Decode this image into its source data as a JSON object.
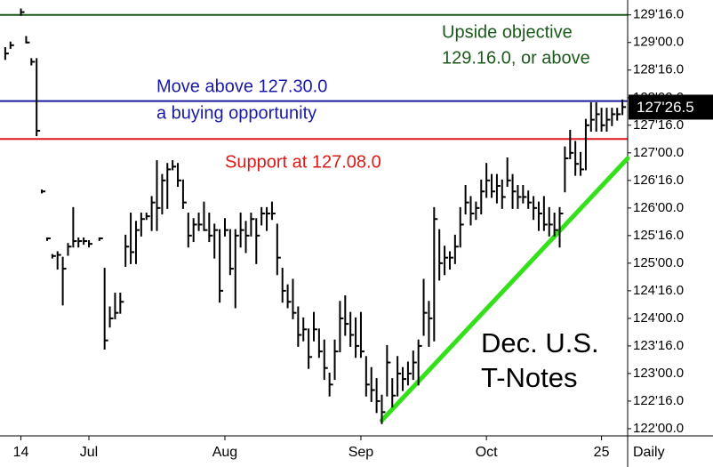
{
  "chart_data": {
    "type": "ohlc",
    "title": [
      "Dec. U.S.",
      "T-Notes"
    ],
    "period": "Daily",
    "bar_color": "#000000",
    "x": [
      1,
      2,
      4,
      5,
      6,
      7,
      8,
      9,
      10,
      11,
      12,
      13,
      14,
      15,
      16,
      17,
      19,
      20,
      21,
      22,
      23,
      24,
      25,
      26,
      27,
      28,
      29,
      30,
      31,
      32,
      33,
      34,
      35,
      36,
      37,
      38,
      39,
      40,
      41,
      42,
      43,
      44,
      45,
      46,
      47,
      48,
      49,
      50,
      51,
      52,
      53,
      54,
      55,
      56,
      57,
      58,
      59,
      60,
      61,
      62,
      63,
      64,
      65,
      66,
      67,
      68,
      69,
      70,
      71,
      72,
      73,
      74,
      75,
      76,
      77,
      78,
      79,
      80,
      81,
      82,
      83,
      84,
      85,
      86,
      87,
      88,
      89,
      90,
      91,
      92,
      93,
      94,
      95,
      96,
      97,
      98,
      99,
      100,
      101,
      102,
      103,
      104,
      105,
      106,
      107,
      108,
      109,
      110,
      111,
      112,
      113,
      114,
      115,
      116,
      117,
      118,
      119
    ],
    "high": [
      128.9,
      129.0,
      129.6,
      129.1,
      128.7,
      128.7,
      126.32,
      125.45,
      125.15,
      125.2,
      125.1,
      125.35,
      126.0,
      125.45,
      125.45,
      125.4,
      125.45,
      124.9,
      124.2,
      124.45,
      124.45,
      125.5,
      125.9,
      125.75,
      125.9,
      125.9,
      126.2,
      126.85,
      126.6,
      126.8,
      126.85,
      126.8,
      126.5,
      125.9,
      125.8,
      125.9,
      126.1,
      125.9,
      125.7,
      125.6,
      125.8,
      125.6,
      125.6,
      125.9,
      125.75,
      125.9,
      125.8,
      126.0,
      126.0,
      126.1,
      125.7,
      124.9,
      124.6,
      124.7,
      124.2,
      124.0,
      123.8,
      124.1,
      123.8,
      123.6,
      123.0,
      123.6,
      124.3,
      124.4,
      124.1,
      124.0,
      124.1,
      123.3,
      123.1,
      122.9,
      122.6,
      123.5,
      122.9,
      123.3,
      123.1,
      123.2,
      123.4,
      123.6,
      124.7,
      124.3,
      126.0,
      125.6,
      125.3,
      125.2,
      125.5,
      126.0,
      126.4,
      126.2,
      126.1,
      126.5,
      126.8,
      126.6,
      126.6,
      126.5,
      126.9,
      126.6,
      126.4,
      126.4,
      126.3,
      126.2,
      126.1,
      126.2,
      126.0,
      125.9,
      126.0,
      127.1,
      127.4,
      127.2,
      127.0,
      127.6,
      127.9,
      127.9,
      127.8,
      127.8,
      127.8,
      127.8,
      127.95
    ],
    "low": [
      128.7,
      128.9,
      129.5,
      129.0,
      128.6,
      127.32,
      126.28,
      125.42,
      125.1,
      124.9,
      124.25,
      125.15,
      125.3,
      125.3,
      125.35,
      125.3,
      125.42,
      123.45,
      123.85,
      124.0,
      124.1,
      124.95,
      125.0,
      125.0,
      125.5,
      125.8,
      125.6,
      125.6,
      125.9,
      126.0,
      126.7,
      126.4,
      126.0,
      125.3,
      125.4,
      125.6,
      125.6,
      125.4,
      125.1,
      124.3,
      125.5,
      124.8,
      124.2,
      125.3,
      125.2,
      125.5,
      125.0,
      125.7,
      125.6,
      125.8,
      124.8,
      124.3,
      124.2,
      124.0,
      123.5,
      123.6,
      123.1,
      123.6,
      123.3,
      122.9,
      122.6,
      122.9,
      123.4,
      123.7,
      123.5,
      123.3,
      123.3,
      122.6,
      122.5,
      122.3,
      122.1,
      122.6,
      122.4,
      122.6,
      122.7,
      122.8,
      122.9,
      122.8,
      123.7,
      123.5,
      123.6,
      124.7,
      124.8,
      124.9,
      125.0,
      125.3,
      125.9,
      125.7,
      125.8,
      125.9,
      126.2,
      126.2,
      126.1,
      126.0,
      126.4,
      126.0,
      126.0,
      126.1,
      126.0,
      125.8,
      125.6,
      125.6,
      125.5,
      125.5,
      125.3,
      126.3,
      126.9,
      126.6,
      126.6,
      126.7,
      127.4,
      127.4,
      127.4,
      127.4,
      127.5,
      127.6,
      127.7
    ],
    "close": [
      128.8,
      128.95,
      129.55,
      129.0,
      128.65,
      127.4,
      126.3,
      125.45,
      125.13,
      125.15,
      124.9,
      125.3,
      125.4,
      125.4,
      125.4,
      125.35,
      125.45,
      123.6,
      124.0,
      124.1,
      124.3,
      125.3,
      125.2,
      125.6,
      125.8,
      125.85,
      126.1,
      126.0,
      126.5,
      126.7,
      126.75,
      126.5,
      126.1,
      125.5,
      125.7,
      125.7,
      125.6,
      125.5,
      125.6,
      124.5,
      125.6,
      124.9,
      125.5,
      125.6,
      125.5,
      125.8,
      125.5,
      125.9,
      125.9,
      125.9,
      125.1,
      124.5,
      124.3,
      124.1,
      123.7,
      123.8,
      123.3,
      123.8,
      123.4,
      123.1,
      122.8,
      123.4,
      124.0,
      123.9,
      123.7,
      123.5,
      123.4,
      122.8,
      122.7,
      122.5,
      122.3,
      123.2,
      122.6,
      123.0,
      122.9,
      123.0,
      123.2,
      123.5,
      124.1,
      124.0,
      125.8,
      125.0,
      125.1,
      125.1,
      125.3,
      125.7,
      126.1,
      125.9,
      126.0,
      126.3,
      126.5,
      126.3,
      126.4,
      126.2,
      126.5,
      126.3,
      126.2,
      126.2,
      126.1,
      126.0,
      125.9,
      125.7,
      125.7,
      125.6,
      125.9,
      126.9,
      127.0,
      126.8,
      126.7,
      127.5,
      127.6,
      127.7,
      127.5,
      127.6,
      127.7,
      127.7,
      127.83
    ],
    "xlim": [
      0,
      120
    ],
    "xticks": [
      {
        "value": 4,
        "label": "14"
      },
      {
        "value": 17,
        "label": "Jul"
      },
      {
        "value": 43,
        "label": "Aug"
      },
      {
        "value": 69,
        "label": "Sep"
      },
      {
        "value": 93,
        "label": "Oct"
      },
      {
        "value": 115,
        "label": "25"
      }
    ],
    "ylim": [
      121.87,
      129.77
    ],
    "yticks": [
      {
        "value": 122,
        "label": "122'00.0"
      },
      {
        "value": 122.5,
        "label": "122'16.0"
      },
      {
        "value": 123,
        "label": "123'00.0"
      },
      {
        "value": 123.5,
        "label": "123'16.0"
      },
      {
        "value": 124,
        "label": "124'00.0"
      },
      {
        "value": 124.5,
        "label": "124'16.0"
      },
      {
        "value": 125,
        "label": "125'00.0"
      },
      {
        "value": 125.5,
        "label": "125'16.0"
      },
      {
        "value": 126,
        "label": "126'00.0"
      },
      {
        "value": 126.5,
        "label": "126'16.0"
      },
      {
        "value": 127,
        "label": "127'00.0"
      },
      {
        "value": 127.5,
        "label": "127'16.0"
      },
      {
        "value": 128,
        "label": "128'00.0"
      },
      {
        "value": 128.5,
        "label": "128'16.0"
      },
      {
        "value": 129,
        "label": "129'00.0"
      },
      {
        "value": 129.5,
        "label": "129'16.0"
      }
    ],
    "levels": [
      {
        "value": 129.5,
        "color": "#1c5a1c"
      },
      {
        "value": 127.9375,
        "color": "#1a1a9a"
      },
      {
        "value": 127.25,
        "color": "#e01818"
      }
    ],
    "annotations": [
      {
        "text": "Upside objective",
        "color": "#1c5a1c"
      },
      {
        "text": "129.16.0, or above",
        "color": "#1c5a1c"
      },
      {
        "text": "Move above 127.30.0",
        "color": "#1a1aa8"
      },
      {
        "text": "a buying opportunity",
        "color": "#1a1aa8"
      },
      {
        "text": "Support at 127.08.0",
        "color": "#e01818"
      }
    ],
    "trendline": {
      "x": [
        73,
        120
      ],
      "y": [
        122.15,
        126.9
      ],
      "color": "#33e01a"
    },
    "last": {
      "value": 127.828,
      "label": "127'26.5"
    }
  }
}
